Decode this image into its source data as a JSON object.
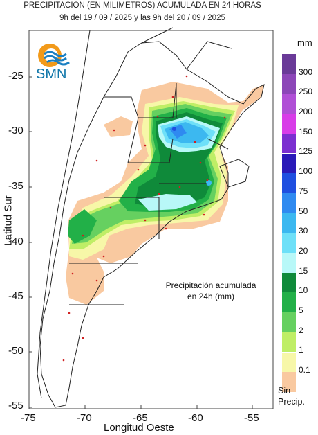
{
  "title": {
    "line1": "PRECIPITACION (EN MILIMETROS) ACUMULADA EN 24 HORAS",
    "line2": "9h del 19 / 09 / 2025  y las 9h del 20 / 09 / 2025"
  },
  "logo": {
    "text": "SMN",
    "icon": "smn-sun-waves-logo"
  },
  "axes": {
    "ylabel": "Latitud Sur",
    "xlabel": "Longitud Oeste",
    "yticks": [
      "-25",
      "-30",
      "-35",
      "-40",
      "-45",
      "-50",
      "-55"
    ],
    "xticks": [
      "-75",
      "-70",
      "-65",
      "-60",
      "-55"
    ]
  },
  "annotation": {
    "line1": "Precipitación acumulada",
    "line2": "en 24h (mm)"
  },
  "legend": {
    "unit": "mm",
    "no_precip_line1": "Sin",
    "no_precip_line2": "Precip.",
    "levels": [
      {
        "label": "300",
        "color": "#6a3a98"
      },
      {
        "label": "250",
        "color": "#8c46b8"
      },
      {
        "label": "200",
        "color": "#b04fd6"
      },
      {
        "label": "150",
        "color": "#d83de8"
      },
      {
        "label": "125",
        "color": "#7b2fd0"
      },
      {
        "label": "100",
        "color": "#2a1ab8"
      },
      {
        "label": "75",
        "color": "#1f4fe0"
      },
      {
        "label": "50",
        "color": "#2f8af0"
      },
      {
        "label": "30",
        "color": "#3cb8f0"
      },
      {
        "label": "20",
        "color": "#6ee0f8"
      },
      {
        "label": "15",
        "color": "#b8f8f8"
      },
      {
        "label": "10",
        "color": "#0f8a3a"
      },
      {
        "label": "5",
        "color": "#22b048"
      },
      {
        "label": "2",
        "color": "#66d060"
      },
      {
        "label": "1",
        "color": "#bfee66"
      },
      {
        "label": "0.1",
        "color": "#f7f7a8"
      },
      {
        "label": "",
        "color": "#f9c9a0"
      }
    ]
  }
}
